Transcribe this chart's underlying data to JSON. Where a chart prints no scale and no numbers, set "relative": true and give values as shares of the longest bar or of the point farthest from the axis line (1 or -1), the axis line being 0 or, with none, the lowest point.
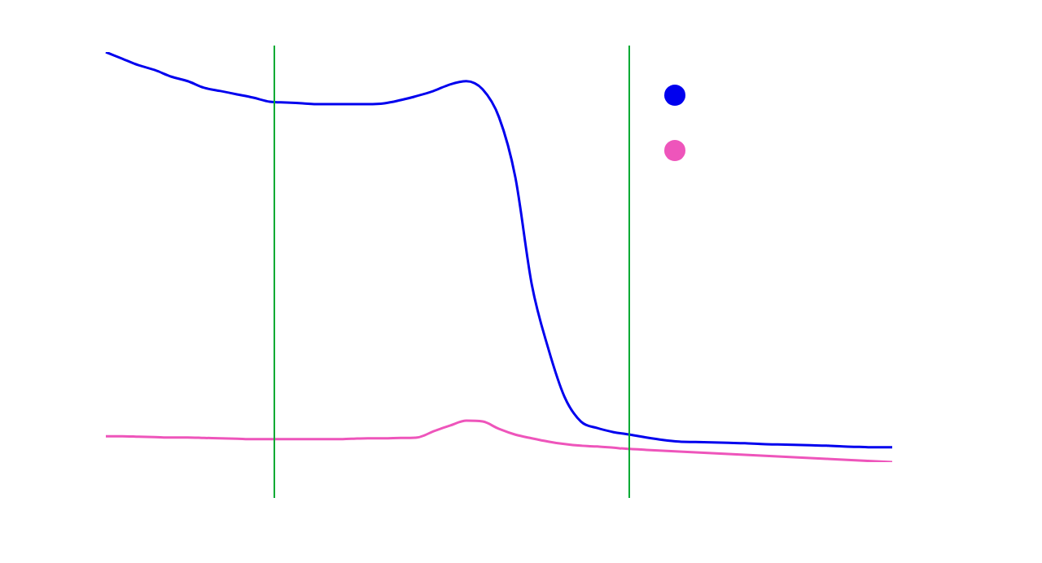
{
  "chart_data": {
    "type": "line",
    "relative": true,
    "marker": "none",
    "line_style": "solid",
    "categories": [
      null,
      null,
      null,
      null,
      null,
      null,
      null,
      null,
      null,
      null,
      null,
      null,
      null,
      null,
      null,
      null,
      null,
      null,
      null,
      null,
      null,
      null,
      null,
      null,
      null,
      null,
      null,
      null,
      null,
      null,
      null,
      null,
      null,
      null,
      null,
      null,
      null,
      null,
      null,
      null,
      null,
      null,
      null,
      null,
      null,
      null,
      null,
      null,
      null
    ],
    "series": [
      {
        "color": "#0000ee",
        "values": [
          1,
          0.984,
          0.968,
          0.956,
          0.94,
          0.929,
          0.913,
          0.905,
          0.897,
          0.889,
          0.879,
          0.877,
          0.875,
          0.873,
          0.873,
          0.873,
          0.873,
          0.875,
          0.883,
          0.893,
          0.905,
          0.921,
          0.929,
          0.909,
          0.841,
          0.694,
          0.433,
          0.278,
          0.159,
          0.099,
          0.083,
          0.073,
          0.067,
          0.06,
          0.054,
          0.05,
          0.049,
          0.048,
          0.047,
          0.046,
          0.044,
          0.043,
          0.042,
          0.041,
          0.04,
          0.038,
          0.037,
          0.036,
          0.036
        ]
      },
      {
        "color": "#ee55bb",
        "values": [
          0.063,
          0.063,
          0.062,
          0.061,
          0.06,
          0.06,
          0.059,
          0.058,
          0.057,
          0.056,
          0.056,
          0.056,
          0.056,
          0.056,
          0.056,
          0.057,
          0.058,
          0.058,
          0.059,
          0.06,
          0.075,
          0.089,
          0.101,
          0.099,
          0.081,
          0.067,
          0.058,
          0.05,
          0.044,
          0.04,
          0.038,
          0.035,
          0.032,
          0.03,
          0.028,
          0.026,
          0.024,
          0.022,
          0.02,
          0.018,
          0.016,
          0.014,
          0.012,
          0.01,
          0.008,
          0.006,
          0.004,
          0.002,
          0
        ]
      }
    ]
  }
}
